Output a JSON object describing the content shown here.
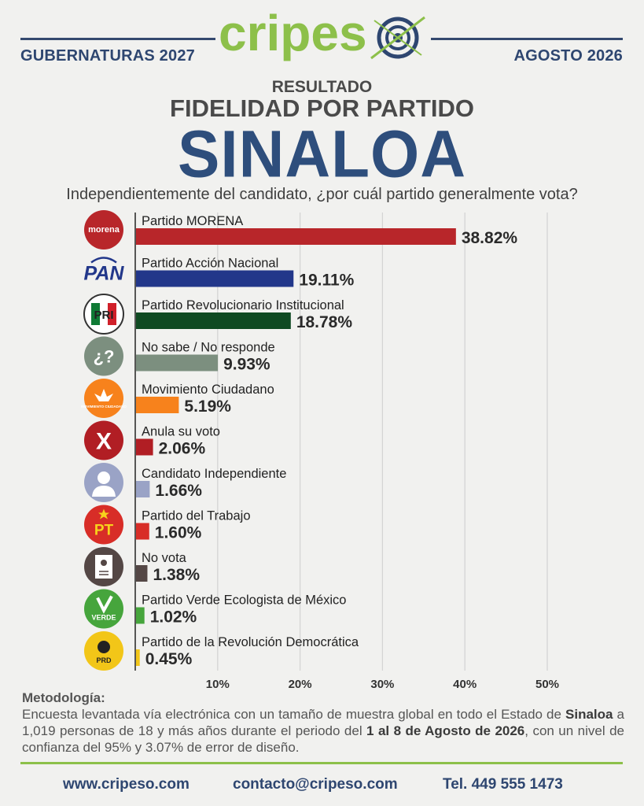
{
  "header": {
    "left": "GUBERNATURAS 2027",
    "right": "AGOSTO 2026",
    "brand": "cripes"
  },
  "title": {
    "line1": "RESULTADO",
    "line2": "FIDELIDAD POR PARTIDO",
    "line3": "SINALOA"
  },
  "question": "Independientemente del candidato, ¿por cuál partido generalmente vota?",
  "chart_data": {
    "type": "bar",
    "orientation": "horizontal",
    "categories": [
      "Partido MORENA",
      "Partido Acción Nacional",
      "Partido Revolucionario Institucional",
      "No sabe / No responde",
      "Movimiento Ciudadano",
      "Anula su voto",
      "Candidato Independiente",
      "Partido del Trabajo",
      "No vota",
      "Partido Verde Ecologista de México",
      "Partido de la Revolución Democrática"
    ],
    "values": [
      38.82,
      19.11,
      18.78,
      9.93,
      5.19,
      2.06,
      1.66,
      1.6,
      1.38,
      1.02,
      0.45
    ],
    "value_labels": [
      "38.82%",
      "19.11%",
      "18.78%",
      "9.93%",
      "5.19%",
      "2.06%",
      "1.66%",
      "1.60%",
      "1.38%",
      "1.02%",
      "0.45%"
    ],
    "colors": [
      "#b8262a",
      "#22378a",
      "#0f4a22",
      "#7c8f7f",
      "#f7821c",
      "#b11e24",
      "#9aa3c6",
      "#d82d27",
      "#544745",
      "#46a53c",
      "#f2c618"
    ],
    "icons": [
      "morena-logo",
      "pan-logo",
      "pri-logo",
      "question-icon",
      "mc-logo",
      "x-icon",
      "person-icon",
      "pt-logo",
      "ballot-icon",
      "verde-logo",
      "prd-logo"
    ],
    "icon_texts": [
      "morena",
      "PAN",
      "PRI",
      "¿?",
      "MOVIMIENTO CIUDADANO",
      "X",
      "",
      "PT",
      "",
      "VERDE",
      "PRD"
    ],
    "xticks": [
      "10%",
      "20%",
      "30%",
      "40%",
      "50%"
    ],
    "xlim": [
      0,
      50
    ],
    "grid": true
  },
  "methodology": {
    "title": "Metodología:",
    "t1": "Encuesta levantada vía electrónica con un tamaño de muestra global en todo el Estado de",
    "b1": "Sinaloa",
    "t2": " a 1,019 personas de 18 y más años durante el periodo del ",
    "b2": "1 al 8 de Agosto de 2026",
    "t3": ", con un nivel de confianza del 95% y 3.07% de error de diseño."
  },
  "footer": {
    "web": "www.cripeso.com",
    "email": "contacto@cripeso.com",
    "phone": "Tel. 449 555 1473"
  }
}
